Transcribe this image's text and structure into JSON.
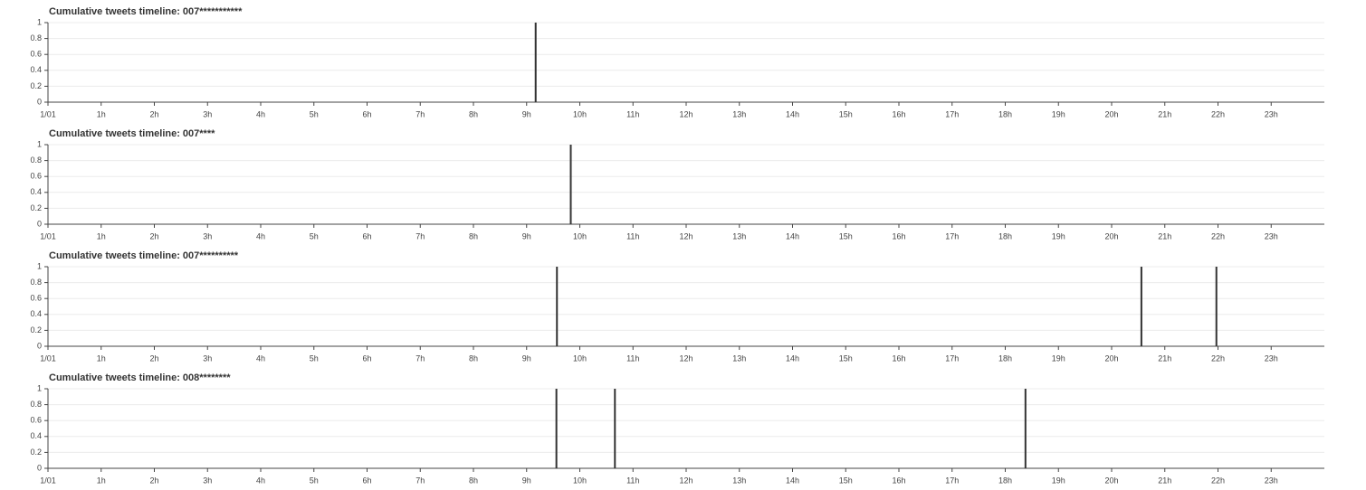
{
  "chart_data": [
    {
      "type": "bar",
      "title": "Cumulative tweets timeline: 007***********",
      "x": [
        9.17
      ],
      "values": [
        1
      ],
      "color": "#333333",
      "xlim": [
        0,
        24
      ],
      "ylim": [
        0,
        1
      ],
      "xticks": [
        {
          "value": 0,
          "label": "1/01"
        },
        {
          "value": 1,
          "label": "1h"
        },
        {
          "value": 2,
          "label": "2h"
        },
        {
          "value": 3,
          "label": "3h"
        },
        {
          "value": 4,
          "label": "4h"
        },
        {
          "value": 5,
          "label": "5h"
        },
        {
          "value": 6,
          "label": "6h"
        },
        {
          "value": 7,
          "label": "7h"
        },
        {
          "value": 8,
          "label": "8h"
        },
        {
          "value": 9,
          "label": "9h"
        },
        {
          "value": 10,
          "label": "10h"
        },
        {
          "value": 11,
          "label": "11h"
        },
        {
          "value": 12,
          "label": "12h"
        },
        {
          "value": 13,
          "label": "13h"
        },
        {
          "value": 14,
          "label": "14h"
        },
        {
          "value": 15,
          "label": "15h"
        },
        {
          "value": 16,
          "label": "16h"
        },
        {
          "value": 17,
          "label": "17h"
        },
        {
          "value": 18,
          "label": "18h"
        },
        {
          "value": 19,
          "label": "19h"
        },
        {
          "value": 20,
          "label": "20h"
        },
        {
          "value": 21,
          "label": "21h"
        },
        {
          "value": 22,
          "label": "22h"
        },
        {
          "value": 23,
          "label": "23h"
        }
      ],
      "yticks": [
        0,
        0.2,
        0.4,
        0.6,
        0.8,
        1
      ],
      "grid": true
    },
    {
      "type": "bar",
      "title": "Cumulative tweets timeline: 007****",
      "x": [
        9.83
      ],
      "values": [
        1
      ],
      "color": "#333333",
      "xlim": [
        0,
        24
      ],
      "ylim": [
        0,
        1
      ],
      "xticks": [
        {
          "value": 0,
          "label": "1/01"
        },
        {
          "value": 1,
          "label": "1h"
        },
        {
          "value": 2,
          "label": "2h"
        },
        {
          "value": 3,
          "label": "3h"
        },
        {
          "value": 4,
          "label": "4h"
        },
        {
          "value": 5,
          "label": "5h"
        },
        {
          "value": 6,
          "label": "6h"
        },
        {
          "value": 7,
          "label": "7h"
        },
        {
          "value": 8,
          "label": "8h"
        },
        {
          "value": 9,
          "label": "9h"
        },
        {
          "value": 10,
          "label": "10h"
        },
        {
          "value": 11,
          "label": "11h"
        },
        {
          "value": 12,
          "label": "12h"
        },
        {
          "value": 13,
          "label": "13h"
        },
        {
          "value": 14,
          "label": "14h"
        },
        {
          "value": 15,
          "label": "15h"
        },
        {
          "value": 16,
          "label": "16h"
        },
        {
          "value": 17,
          "label": "17h"
        },
        {
          "value": 18,
          "label": "18h"
        },
        {
          "value": 19,
          "label": "19h"
        },
        {
          "value": 20,
          "label": "20h"
        },
        {
          "value": 21,
          "label": "21h"
        },
        {
          "value": 22,
          "label": "22h"
        },
        {
          "value": 23,
          "label": "23h"
        }
      ],
      "yticks": [
        0,
        0.2,
        0.4,
        0.6,
        0.8,
        1
      ],
      "grid": true
    },
    {
      "type": "bar",
      "title": "Cumulative tweets timeline: 007**********",
      "x": [
        9.57,
        20.56,
        21.97
      ],
      "values": [
        1,
        1,
        1
      ],
      "color": "#333333",
      "xlim": [
        0,
        24
      ],
      "ylim": [
        0,
        1
      ],
      "xticks": [
        {
          "value": 0,
          "label": "1/01"
        },
        {
          "value": 1,
          "label": "1h"
        },
        {
          "value": 2,
          "label": "2h"
        },
        {
          "value": 3,
          "label": "3h"
        },
        {
          "value": 4,
          "label": "4h"
        },
        {
          "value": 5,
          "label": "5h"
        },
        {
          "value": 6,
          "label": "6h"
        },
        {
          "value": 7,
          "label": "7h"
        },
        {
          "value": 8,
          "label": "8h"
        },
        {
          "value": 9,
          "label": "9h"
        },
        {
          "value": 10,
          "label": "10h"
        },
        {
          "value": 11,
          "label": "11h"
        },
        {
          "value": 12,
          "label": "12h"
        },
        {
          "value": 13,
          "label": "13h"
        },
        {
          "value": 14,
          "label": "14h"
        },
        {
          "value": 15,
          "label": "15h"
        },
        {
          "value": 16,
          "label": "16h"
        },
        {
          "value": 17,
          "label": "17h"
        },
        {
          "value": 18,
          "label": "18h"
        },
        {
          "value": 19,
          "label": "19h"
        },
        {
          "value": 20,
          "label": "20h"
        },
        {
          "value": 21,
          "label": "21h"
        },
        {
          "value": 22,
          "label": "22h"
        },
        {
          "value": 23,
          "label": "23h"
        }
      ],
      "yticks": [
        0,
        0.2,
        0.4,
        0.6,
        0.8,
        1
      ],
      "grid": true
    },
    {
      "type": "bar",
      "title": "Cumulative tweets timeline: 008********",
      "x": [
        9.56,
        10.66,
        18.38
      ],
      "values": [
        1,
        1,
        1
      ],
      "color": "#333333",
      "xlim": [
        0,
        24
      ],
      "ylim": [
        0,
        1
      ],
      "xticks": [
        {
          "value": 0,
          "label": "1/01"
        },
        {
          "value": 1,
          "label": "1h"
        },
        {
          "value": 2,
          "label": "2h"
        },
        {
          "value": 3,
          "label": "3h"
        },
        {
          "value": 4,
          "label": "4h"
        },
        {
          "value": 5,
          "label": "5h"
        },
        {
          "value": 6,
          "label": "6h"
        },
        {
          "value": 7,
          "label": "7h"
        },
        {
          "value": 8,
          "label": "8h"
        },
        {
          "value": 9,
          "label": "9h"
        },
        {
          "value": 10,
          "label": "10h"
        },
        {
          "value": 11,
          "label": "11h"
        },
        {
          "value": 12,
          "label": "12h"
        },
        {
          "value": 13,
          "label": "13h"
        },
        {
          "value": 14,
          "label": "14h"
        },
        {
          "value": 15,
          "label": "15h"
        },
        {
          "value": 16,
          "label": "16h"
        },
        {
          "value": 17,
          "label": "17h"
        },
        {
          "value": 18,
          "label": "18h"
        },
        {
          "value": 19,
          "label": "19h"
        },
        {
          "value": 20,
          "label": "20h"
        },
        {
          "value": 21,
          "label": "21h"
        },
        {
          "value": 22,
          "label": "22h"
        },
        {
          "value": 23,
          "label": "23h"
        }
      ],
      "yticks": [
        0,
        0.2,
        0.4,
        0.6,
        0.8,
        1
      ],
      "grid": true
    }
  ]
}
